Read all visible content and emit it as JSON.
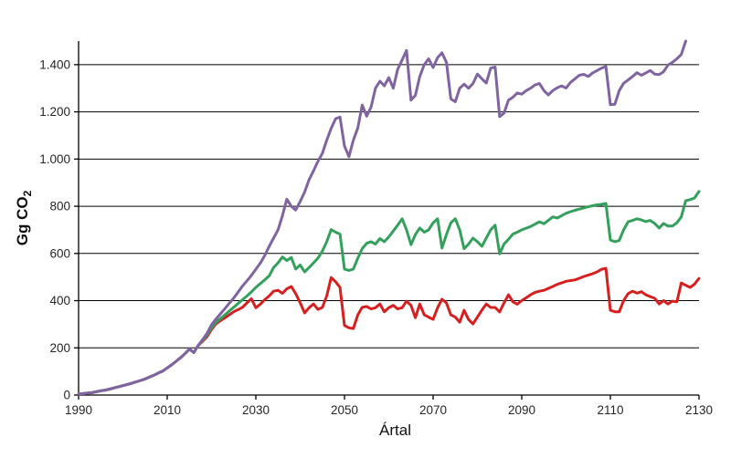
{
  "page": {
    "background_color": "#FFFFFF",
    "description": "Line chart of Gg CO2 emissions versus year (Artal), three scenario lines diverging after ~2017"
  },
  "chart_data": {
    "type": "line",
    "title": "",
    "xlabel": "Ártal",
    "ylabel": "Gg CO₂",
    "ylabel_base": "Gg CO",
    "ylabel_subscript": "2",
    "xlim": [
      1990,
      2130
    ],
    "ylim": [
      0,
      1500
    ],
    "grid": "horizontal-only",
    "legend": "none",
    "x_ticks": [
      {
        "value": 1990,
        "label": "1990"
      },
      {
        "value": 2010,
        "label": "2010"
      },
      {
        "value": 2030,
        "label": "2030"
      },
      {
        "value": 2050,
        "label": "2050"
      },
      {
        "value": 2070,
        "label": "2070"
      },
      {
        "value": 2090,
        "label": "2090"
      },
      {
        "value": 2110,
        "label": "2110"
      },
      {
        "value": 2130,
        "label": "2130"
      }
    ],
    "y_ticks": [
      {
        "value": 0,
        "label": "0"
      },
      {
        "value": 200,
        "label": "200"
      },
      {
        "value": 400,
        "label": "400"
      },
      {
        "value": 600,
        "label": "600"
      },
      {
        "value": 800,
        "label": "800"
      },
      {
        "value": 1000,
        "label": "1.000"
      },
      {
        "value": 1200,
        "label": "1.200"
      },
      {
        "value": 1400,
        "label": "1.400"
      }
    ],
    "axis_color": "#000000",
    "gridline_color": "#000000",
    "series": [
      {
        "name": "red-series",
        "color": "#D62020",
        "stroke_width": 3,
        "start_year": 1990,
        "values": [
          5,
          6,
          8,
          10,
          14,
          18,
          21,
          25,
          30,
          35,
          40,
          45,
          50,
          56,
          62,
          68,
          76,
          84,
          93,
          102,
          115,
          128,
          143,
          158,
          175,
          195,
          180,
          210,
          228,
          248,
          278,
          301,
          315,
          327,
          340,
          353,
          362,
          372,
          391,
          408,
          370,
          385,
          404,
          420,
          440,
          444,
          431,
          450,
          460,
          430,
          391,
          348,
          370,
          386,
          363,
          371,
          420,
          498,
          480,
          456,
          295,
          285,
          282,
          340,
          372,
          375,
          365,
          370,
          386,
          353,
          370,
          380,
          365,
          370,
          398,
          380,
          328,
          386,
          340,
          330,
          321,
          370,
          406,
          390,
          340,
          330,
          309,
          359,
          320,
          301,
          330,
          360,
          386,
          371,
          371,
          352,
          390,
          425,
          395,
          385,
          400,
          412,
          425,
          435,
          440,
          444,
          452,
          460,
          469,
          475,
          482,
          485,
          488,
          495,
          502,
          508,
          514,
          522,
          533,
          537,
          359,
          353,
          353,
          400,
          430,
          440,
          432,
          438,
          425,
          417,
          410,
          386,
          400,
          386,
          398,
          395,
          475,
          465,
          456,
          470,
          494
        ]
      },
      {
        "name": "green-series",
        "color": "#33A05C",
        "stroke_width": 3,
        "start_year": 1990,
        "values": [
          5,
          6,
          8,
          10,
          14,
          18,
          21,
          25,
          30,
          35,
          40,
          45,
          50,
          56,
          62,
          68,
          76,
          84,
          93,
          102,
          115,
          128,
          143,
          158,
          175,
          195,
          180,
          210,
          232,
          255,
          285,
          308,
          324,
          340,
          356,
          372,
          388,
          404,
          420,
          437,
          456,
          472,
          488,
          505,
          540,
          560,
          585,
          570,
          583,
          534,
          551,
          522,
          540,
          560,
          580,
          610,
          650,
          701,
          690,
          682,
          534,
          528,
          534,
          580,
          620,
          643,
          650,
          640,
          663,
          650,
          670,
          695,
          720,
          747,
          700,
          637,
          680,
          708,
          690,
          700,
          730,
          747,
          623,
          680,
          730,
          747,
          700,
          620,
          640,
          665,
          650,
          630,
          665,
          700,
          720,
          598,
          640,
          660,
          682,
          690,
          700,
          707,
          714,
          724,
          734,
          726,
          740,
          755,
          750,
          760,
          770,
          777,
          783,
          788,
          793,
          798,
          802,
          806,
          808,
          812,
          657,
          650,
          655,
          700,
          734,
          740,
          747,
          742,
          735,
          740,
          727,
          708,
          727,
          716,
          716,
          730,
          755,
          824,
          828,
          835,
          863
        ]
      },
      {
        "name": "purple-series",
        "color": "#8064A2",
        "stroke_width": 3,
        "start_year": 1990,
        "values": [
          5,
          6,
          8,
          10,
          14,
          18,
          21,
          25,
          30,
          35,
          40,
          45,
          50,
          56,
          62,
          68,
          76,
          84,
          93,
          102,
          115,
          128,
          143,
          158,
          175,
          195,
          180,
          210,
          235,
          262,
          298,
          322,
          344,
          366,
          389,
          411,
          436,
          462,
          484,
          507,
          533,
          559,
          591,
          630,
          665,
          700,
          760,
          830,
          800,
          784,
          820,
          860,
          912,
          950,
          990,
          1024,
          1080,
          1130,
          1171,
          1178,
          1055,
          1010,
          1080,
          1132,
          1229,
          1182,
          1220,
          1300,
          1330,
          1310,
          1345,
          1300,
          1380,
          1420,
          1460,
          1250,
          1270,
          1350,
          1400,
          1425,
          1388,
          1430,
          1450,
          1410,
          1255,
          1243,
          1300,
          1317,
          1300,
          1320,
          1360,
          1340,
          1322,
          1385,
          1390,
          1180,
          1195,
          1250,
          1262,
          1280,
          1275,
          1290,
          1300,
          1314,
          1320,
          1290,
          1272,
          1290,
          1302,
          1310,
          1301,
          1325,
          1340,
          1355,
          1359,
          1350,
          1365,
          1375,
          1385,
          1392,
          1230,
          1232,
          1290,
          1321,
          1335,
          1350,
          1366,
          1355,
          1365,
          1375,
          1360,
          1358,
          1370,
          1398,
          1410,
          1425,
          1443,
          1500
        ]
      }
    ]
  }
}
